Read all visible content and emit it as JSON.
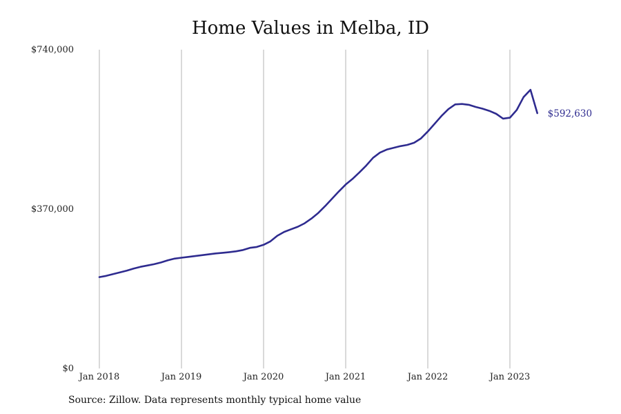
{
  "chart_data": {
    "type": "line",
    "title": "Home Values in Melba, ID",
    "xlabel": "",
    "ylabel": "",
    "x_range": [
      "2018-01",
      "2023-05"
    ],
    "ylim": [
      0,
      740000
    ],
    "y_ticks": [
      {
        "value": 0,
        "label": "$0"
      },
      {
        "value": 370000,
        "label": "$370,000"
      },
      {
        "value": 740000,
        "label": "$740,000"
      }
    ],
    "x_ticks": [
      {
        "date": "2018-01",
        "label": "Jan 2018"
      },
      {
        "date": "2019-01",
        "label": "Jan 2019"
      },
      {
        "date": "2020-01",
        "label": "Jan 2020"
      },
      {
        "date": "2021-01",
        "label": "Jan 2021"
      },
      {
        "date": "2022-01",
        "label": "Jan 2022"
      },
      {
        "date": "2023-01",
        "label": "Jan 2023"
      }
    ],
    "grid": "vertical",
    "line_color": "#2e2b8f",
    "series": [
      {
        "x": [
          "2018-01",
          "2018-02",
          "2018-03",
          "2018-04",
          "2018-05",
          "2018-06",
          "2018-07",
          "2018-08",
          "2018-09",
          "2018-10",
          "2018-11",
          "2018-12",
          "2019-01",
          "2019-02",
          "2019-03",
          "2019-04",
          "2019-05",
          "2019-06",
          "2019-07",
          "2019-08",
          "2019-09",
          "2019-10",
          "2019-11",
          "2019-12",
          "2020-01",
          "2020-02",
          "2020-03",
          "2020-04",
          "2020-05",
          "2020-06",
          "2020-07",
          "2020-08",
          "2020-09",
          "2020-10",
          "2020-11",
          "2020-12",
          "2021-01",
          "2021-02",
          "2021-03",
          "2021-04",
          "2021-05",
          "2021-06",
          "2021-07",
          "2021-08",
          "2021-09",
          "2021-10",
          "2021-11",
          "2021-12",
          "2022-01",
          "2022-02",
          "2022-03",
          "2022-04",
          "2022-05",
          "2022-06",
          "2022-07",
          "2022-08",
          "2022-09",
          "2022-10",
          "2022-11",
          "2022-12",
          "2023-01",
          "2023-02",
          "2023-03",
          "2023-04",
          "2023-05"
        ],
        "values": [
          212000,
          215000,
          219000,
          223000,
          227000,
          232000,
          236000,
          239000,
          242000,
          246000,
          251000,
          255000,
          257000,
          259000,
          261000,
          263000,
          265000,
          267000,
          268500,
          270000,
          272000,
          275000,
          280000,
          282000,
          287000,
          295000,
          308000,
          317000,
          323000,
          329000,
          337000,
          348000,
          361000,
          377000,
          394000,
          411000,
          427000,
          440000,
          455000,
          471000,
          489000,
          501000,
          508000,
          512000,
          516000,
          519000,
          524000,
          534000,
          550000,
          568000,
          586000,
          602000,
          613000,
          614000,
          612000,
          607000,
          603000,
          598000,
          591000,
          580000,
          582000,
          600000,
          630000,
          647000,
          592630
        ]
      }
    ],
    "end_label": "$592,630"
  },
  "source_note": "Source: Zillow. Data represents monthly typical home value"
}
